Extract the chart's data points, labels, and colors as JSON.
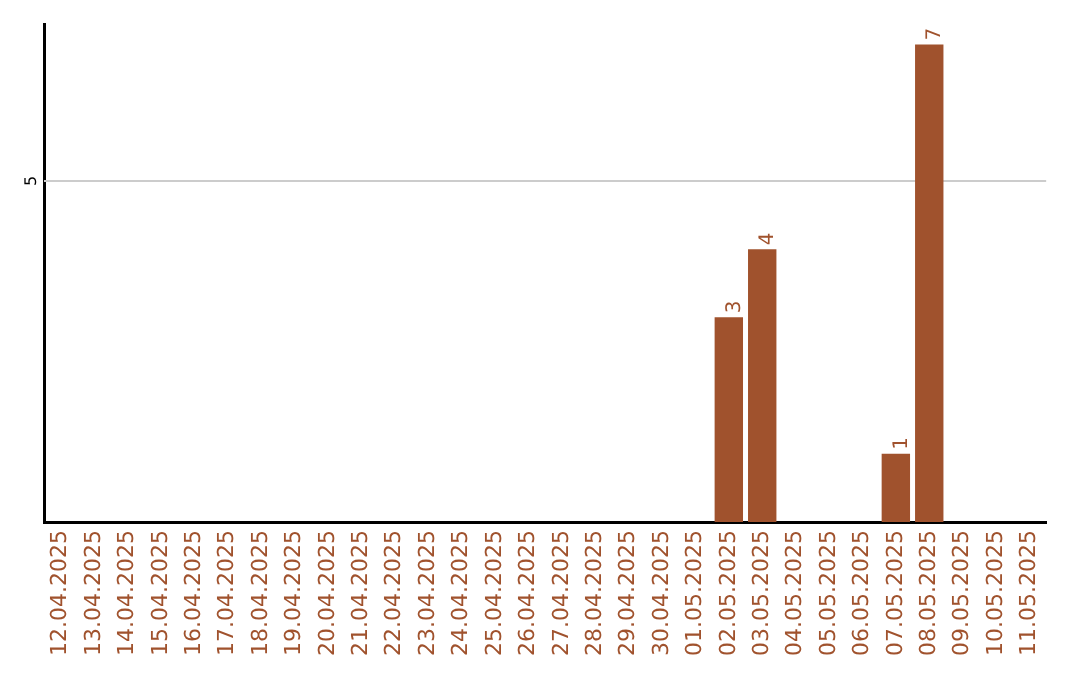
{
  "chart_data": {
    "type": "bar",
    "categories": [
      "12.04.2025",
      "13.04.2025",
      "14.04.2025",
      "15.04.2025",
      "16.04.2025",
      "17.04.2025",
      "18.04.2025",
      "19.04.2025",
      "20.04.2025",
      "21.04.2025",
      "22.04.2025",
      "23.04.2025",
      "24.04.2025",
      "25.04.2025",
      "26.04.2025",
      "27.04.2025",
      "28.04.2025",
      "29.04.2025",
      "30.04.2025",
      "01.05.2025",
      "02.05.2025",
      "03.05.2025",
      "04.05.2025",
      "05.05.2025",
      "06.05.2025",
      "07.05.2025",
      "08.05.2025",
      "09.05.2025",
      "10.05.2025",
      "11.05.2025"
    ],
    "values": [
      null,
      null,
      null,
      null,
      null,
      null,
      null,
      null,
      null,
      null,
      null,
      null,
      null,
      null,
      null,
      null,
      null,
      null,
      null,
      null,
      3,
      4,
      null,
      null,
      null,
      1,
      7,
      null,
      null,
      null
    ],
    "data_labels": true,
    "color": "#a0522d",
    "ylim": [
      0,
      7.3
    ],
    "ref_lines": [
      {
        "axis": "y",
        "value": 5,
        "label": "5",
        "color": "#cccccc"
      }
    ],
    "legend": false
  }
}
